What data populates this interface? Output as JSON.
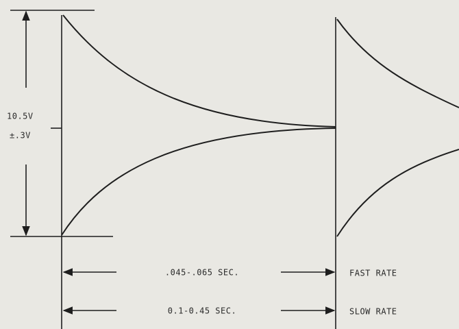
{
  "labels": {
    "amplitude": "10.5V",
    "tolerance": "±.3V"
  },
  "timings": [
    {
      "duration": ".045-.065 SEC.",
      "rate": "FAST RATE"
    },
    {
      "duration": "0.1-0.45 SEC.",
      "rate": "SLOW RATE"
    }
  ]
}
